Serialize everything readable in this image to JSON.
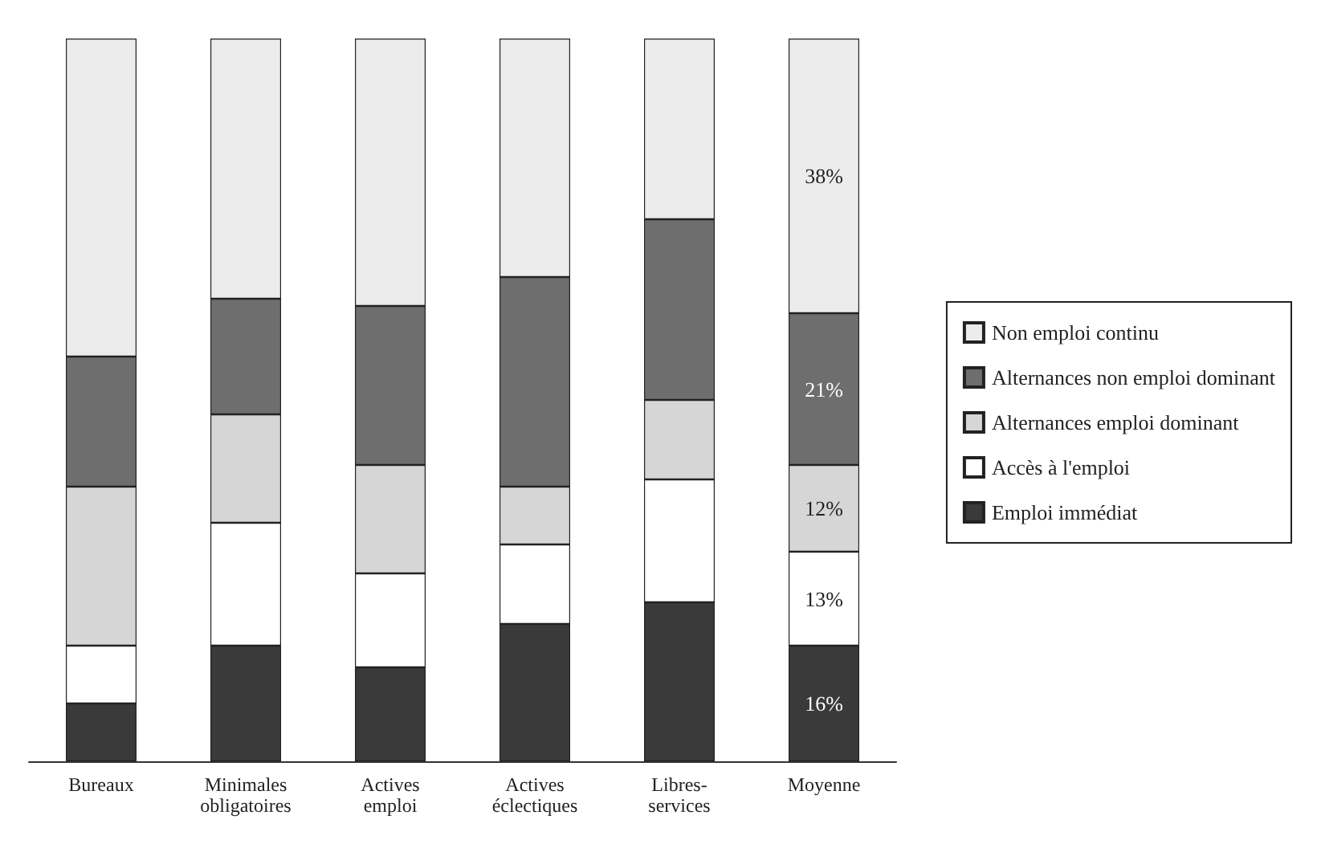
{
  "chart_data": {
    "type": "bar",
    "stacked": true,
    "categories": [
      "Bureaux",
      "Minimales\nobligatoires",
      "Actives\nemploi",
      "Actives\néclectiques",
      "Libres-\nservices",
      "Moyenne"
    ],
    "ylim": [
      0,
      100
    ],
    "tick_labels": "x",
    "legend": "right",
    "series": [
      {
        "name": "Emploi immédiat",
        "color": "#3a3a3a",
        "values": [
          8,
          16,
          13,
          19,
          22,
          16
        ],
        "value_labels": [
          null,
          null,
          null,
          null,
          null,
          "16%"
        ]
      },
      {
        "name": "Accès à l'emploi",
        "color": "#ffffff",
        "values": [
          8,
          17,
          13,
          11,
          17,
          13
        ],
        "value_labels": [
          null,
          null,
          null,
          null,
          null,
          "13%"
        ]
      },
      {
        "name": "Alternances emploi dominant",
        "color": "#d6d6d6",
        "values": [
          22,
          15,
          15,
          8,
          11,
          12
        ],
        "value_labels": [
          null,
          null,
          null,
          null,
          null,
          "12%"
        ]
      },
      {
        "name": "Alternances non emploi dominant",
        "color": "#6e6e6e",
        "values": [
          18,
          16,
          22,
          29,
          25,
          21
        ],
        "value_labels": [
          null,
          null,
          null,
          null,
          null,
          "21%"
        ]
      },
      {
        "name": "Non emploi continu",
        "color": "#ececec",
        "values": [
          44,
          36,
          37,
          33,
          25,
          38
        ],
        "value_labels": [
          null,
          null,
          null,
          null,
          null,
          "38%"
        ]
      }
    ]
  }
}
